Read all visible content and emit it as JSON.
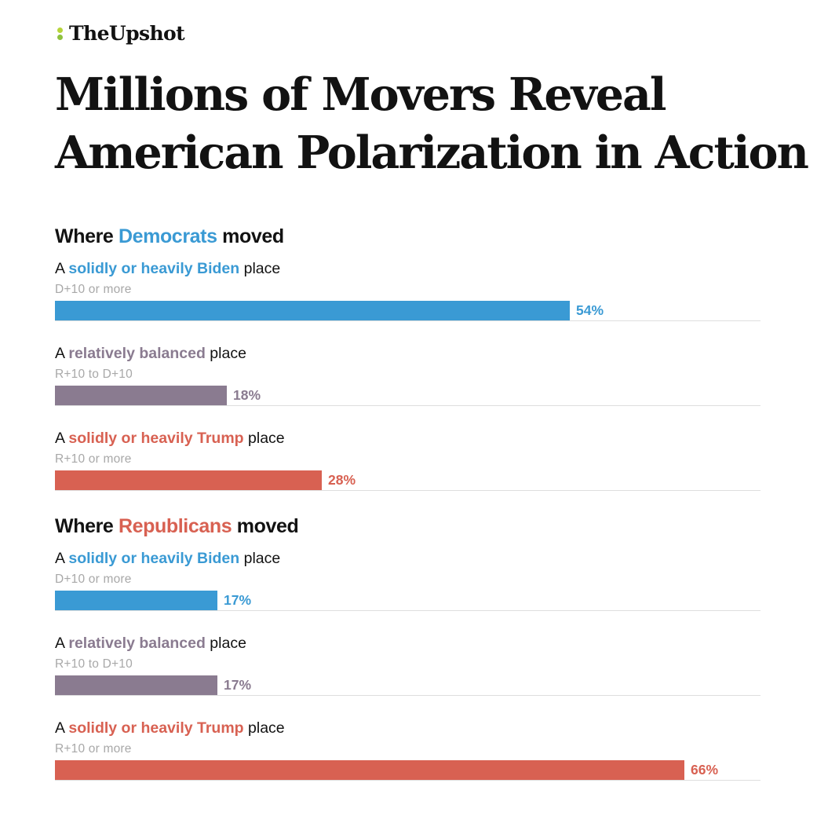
{
  "brand": {
    "name": "TheUpshot",
    "mark_colors": [
      "#b7d43a",
      "#8fc23f"
    ]
  },
  "headline": "Millions of Movers Reveal American Polarization in Action",
  "colors": {
    "biden": "#3a9ad4",
    "balanced": "#8a7b90",
    "trump": "#d86152"
  },
  "chart_data": {
    "type": "bar",
    "orientation": "horizontal",
    "unit": "%",
    "xlim": [
      0,
      74
    ],
    "groups": [
      {
        "title_prefix": "Where ",
        "title_highlight": "Democrats",
        "title_suffix": " moved",
        "highlight_color": "#3a9ad4",
        "rows": [
          {
            "label_prefix": "A ",
            "label_highlight": "solidly or heavily Biden",
            "label_suffix": " place",
            "range": "D+10 or more",
            "value": 54,
            "value_label": "54%",
            "color": "#3a9ad4"
          },
          {
            "label_prefix": "A ",
            "label_highlight": "relatively balanced",
            "label_suffix": " place",
            "range": "R+10 to D+10",
            "value": 18,
            "value_label": "18%",
            "color": "#8a7b90"
          },
          {
            "label_prefix": "A ",
            "label_highlight": "solidly or heavily Trump",
            "label_suffix": " place",
            "range": "R+10 or more",
            "value": 28,
            "value_label": "28%",
            "color": "#d86152"
          }
        ]
      },
      {
        "title_prefix": "Where ",
        "title_highlight": "Republicans",
        "title_suffix": " moved",
        "highlight_color": "#d86152",
        "rows": [
          {
            "label_prefix": "A ",
            "label_highlight": "solidly or heavily Biden",
            "label_suffix": " place",
            "range": "D+10 or more",
            "value": 17,
            "value_label": "17%",
            "color": "#3a9ad4"
          },
          {
            "label_prefix": "A ",
            "label_highlight": "relatively balanced",
            "label_suffix": " place",
            "range": "R+10 to D+10",
            "value": 17,
            "value_label": "17%",
            "color": "#8a7b90"
          },
          {
            "label_prefix": "A ",
            "label_highlight": "solidly or heavily Trump",
            "label_suffix": " place",
            "range": "R+10 or more",
            "value": 66,
            "value_label": "66%",
            "color": "#d86152"
          }
        ]
      }
    ]
  }
}
